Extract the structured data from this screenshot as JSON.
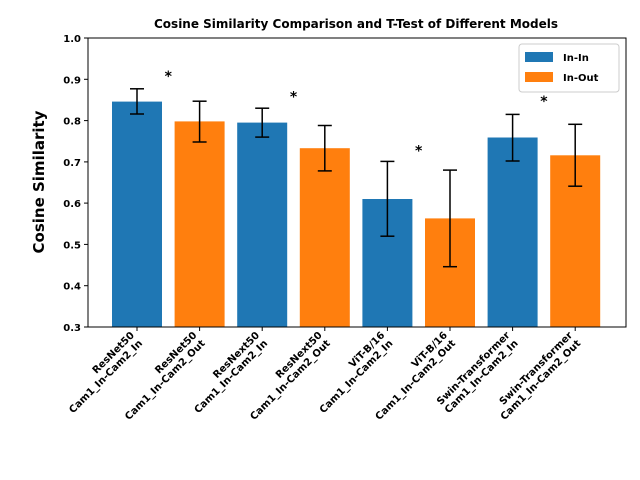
{
  "chart_data": {
    "type": "bar",
    "title": "Cosine Similarity Comparison and T-Test of Different Models",
    "xlabel": "",
    "ylabel": "Cosine Similarity",
    "ylim": [
      0.3,
      1.0
    ],
    "yticks": [
      "0.3",
      "0.4",
      "0.5",
      "0.6",
      "0.7",
      "0.8",
      "0.9",
      "1.0"
    ],
    "grid": false,
    "legend_position": "top-right",
    "legend": [
      {
        "name": "In-In",
        "color": "#1f77b4"
      },
      {
        "name": "In-Out",
        "color": "#ff7f0e"
      }
    ],
    "categories": [
      [
        "ResNet50",
        "Cam1_In-Cam2_In"
      ],
      [
        "ResNet50",
        "Cam1_In-Cam2_Out"
      ],
      [
        "ResNext50",
        "Cam1_In-Cam2_In"
      ],
      [
        "ResNext50",
        "Cam1_In-Cam2_Out"
      ],
      [
        "ViT-B/16",
        "Cam1_In-Cam2_In"
      ],
      [
        "ViT-B/16",
        "Cam1_In-Cam2_Out"
      ],
      [
        "Swin-Transformer",
        "Cam1_In-Cam2_In"
      ],
      [
        "Swin-Transformer",
        "Cam1_In-Cam2_Out"
      ]
    ],
    "bars": [
      {
        "value": 0.846,
        "err_low": 0.816,
        "err_high": 0.877,
        "series": "In-In"
      },
      {
        "value": 0.798,
        "err_low": 0.748,
        "err_high": 0.847,
        "series": "In-Out"
      },
      {
        "value": 0.795,
        "err_low": 0.76,
        "err_high": 0.83,
        "series": "In-In"
      },
      {
        "value": 0.733,
        "err_low": 0.678,
        "err_high": 0.788,
        "series": "In-Out"
      },
      {
        "value": 0.61,
        "err_low": 0.52,
        "err_high": 0.701,
        "series": "In-In"
      },
      {
        "value": 0.563,
        "err_low": 0.446,
        "err_high": 0.68,
        "series": "In-Out"
      },
      {
        "value": 0.759,
        "err_low": 0.702,
        "err_high": 0.815,
        "series": "In-In"
      },
      {
        "value": 0.716,
        "err_low": 0.641,
        "err_high": 0.791,
        "series": "In-Out"
      }
    ],
    "annotations": [
      {
        "text": "*",
        "pair": 0,
        "y": 0.92
      },
      {
        "text": "*",
        "pair": 1,
        "y": 0.87
      },
      {
        "text": "*",
        "pair": 2,
        "y": 0.74
      },
      {
        "text": "*",
        "pair": 3,
        "y": 0.86
      }
    ]
  }
}
